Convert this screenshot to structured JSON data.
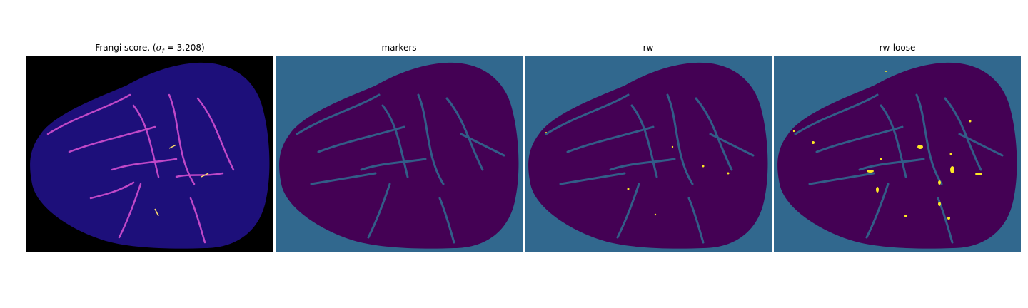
{
  "panels": [
    {
      "id": "frangi",
      "title": "Frangi score, (σ_f = 3.208)",
      "background": "#000000",
      "fill": "#1d0f7a",
      "accent": "#c048c8",
      "highlight": "#ffe06a"
    },
    {
      "id": "markers",
      "title": "markers",
      "background": "#31688e",
      "fill": "#440154"
    },
    {
      "id": "rw",
      "title": "rw",
      "background": "#31688e",
      "fill": "#440154",
      "highlight": "#fde725"
    },
    {
      "id": "rw-loose",
      "title": "rw-loose",
      "background": "#31688e",
      "fill": "#440154",
      "highlight": "#fde725"
    }
  ]
}
